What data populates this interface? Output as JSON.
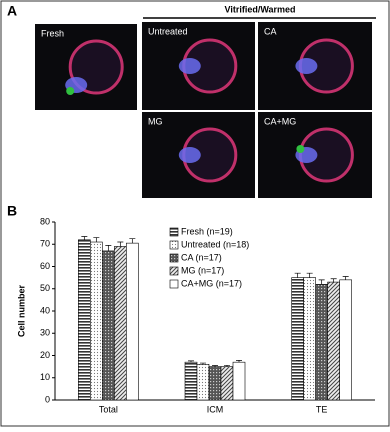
{
  "panel_a": {
    "label": "A",
    "group_label": "Vitrified/Warmed",
    "images": [
      "Fresh",
      "Untreated",
      "CA",
      "MG",
      "CA+MG"
    ]
  },
  "chart_data": {
    "type": "bar",
    "panel_label": "B",
    "y_label": "Cell number",
    "categories": [
      "Total",
      "ICM",
      "TE"
    ],
    "ylim": [
      0,
      80
    ],
    "yticks": [
      0,
      10,
      20,
      30,
      40,
      50,
      60,
      70,
      80
    ],
    "series": [
      {
        "name": "Fresh (n=19)",
        "color": "#333333",
        "pattern": "horizontal",
        "values": [
          72,
          17,
          55
        ],
        "errors": [
          1.5,
          0.6,
          2
        ]
      },
      {
        "name": "Untreated (n=18)",
        "color": "#888888",
        "pattern": "dots",
        "values": [
          71,
          16,
          55
        ],
        "errors": [
          2,
          0.6,
          2
        ]
      },
      {
        "name": "CA (n=17)",
        "color": "#444444",
        "pattern": "crosshatch",
        "values": [
          67,
          15,
          52
        ],
        "errors": [
          2.5,
          0.5,
          2
        ]
      },
      {
        "name": "MG (n=17)",
        "color": "#555555",
        "pattern": "diagonal",
        "values": [
          69,
          15,
          53
        ],
        "errors": [
          2,
          0.6,
          1.5
        ]
      },
      {
        "name": "CA+MG (n=17)",
        "color": "#ffffff",
        "pattern": "solid",
        "values": [
          70.5,
          17,
          54
        ],
        "errors": [
          2,
          0.8,
          1.5
        ]
      }
    ]
  }
}
